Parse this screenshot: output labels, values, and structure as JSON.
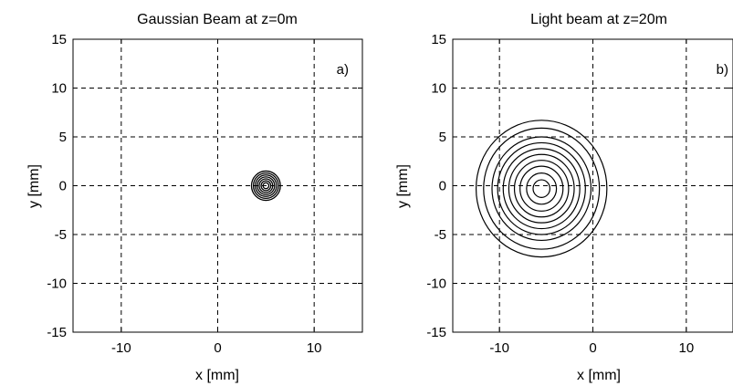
{
  "chart_data": [
    {
      "type": "contour",
      "title": "Gaussian Beam at z=0m",
      "panel_label": "a)",
      "xlabel": "x [mm]",
      "ylabel": "y [mm]",
      "xlim": [
        -15,
        15
      ],
      "ylim": [
        -15,
        15
      ],
      "xticks": [
        -10,
        0,
        10
      ],
      "yticks": [
        -15,
        -10,
        -5,
        0,
        5,
        10,
        15
      ],
      "grid": true,
      "grid_style": "dashed",
      "center": [
        5,
        0
      ],
      "contour_radii": [
        0.3,
        0.5,
        0.7,
        0.9,
        1.1,
        1.3,
        1.5
      ],
      "line_color": "#000000"
    },
    {
      "type": "contour",
      "title": "Light beam at z=20m",
      "panel_label": "b)",
      "xlabel": "x [mm]",
      "ylabel": "y [mm]",
      "xlim": [
        -15,
        15
      ],
      "ylim": [
        -15,
        15
      ],
      "xticks": [
        -10,
        0,
        10
      ],
      "yticks": [
        -15,
        -10,
        -5,
        0,
        5,
        10,
        15
      ],
      "grid": true,
      "grid_style": "dashed",
      "center": [
        -5.5,
        -0.3
      ],
      "contour_radii": [
        0.9,
        1.6,
        2.3,
        2.9,
        3.5,
        4.1,
        4.7,
        5.3,
        6.2,
        7.0
      ],
      "line_color": "#000000"
    }
  ]
}
